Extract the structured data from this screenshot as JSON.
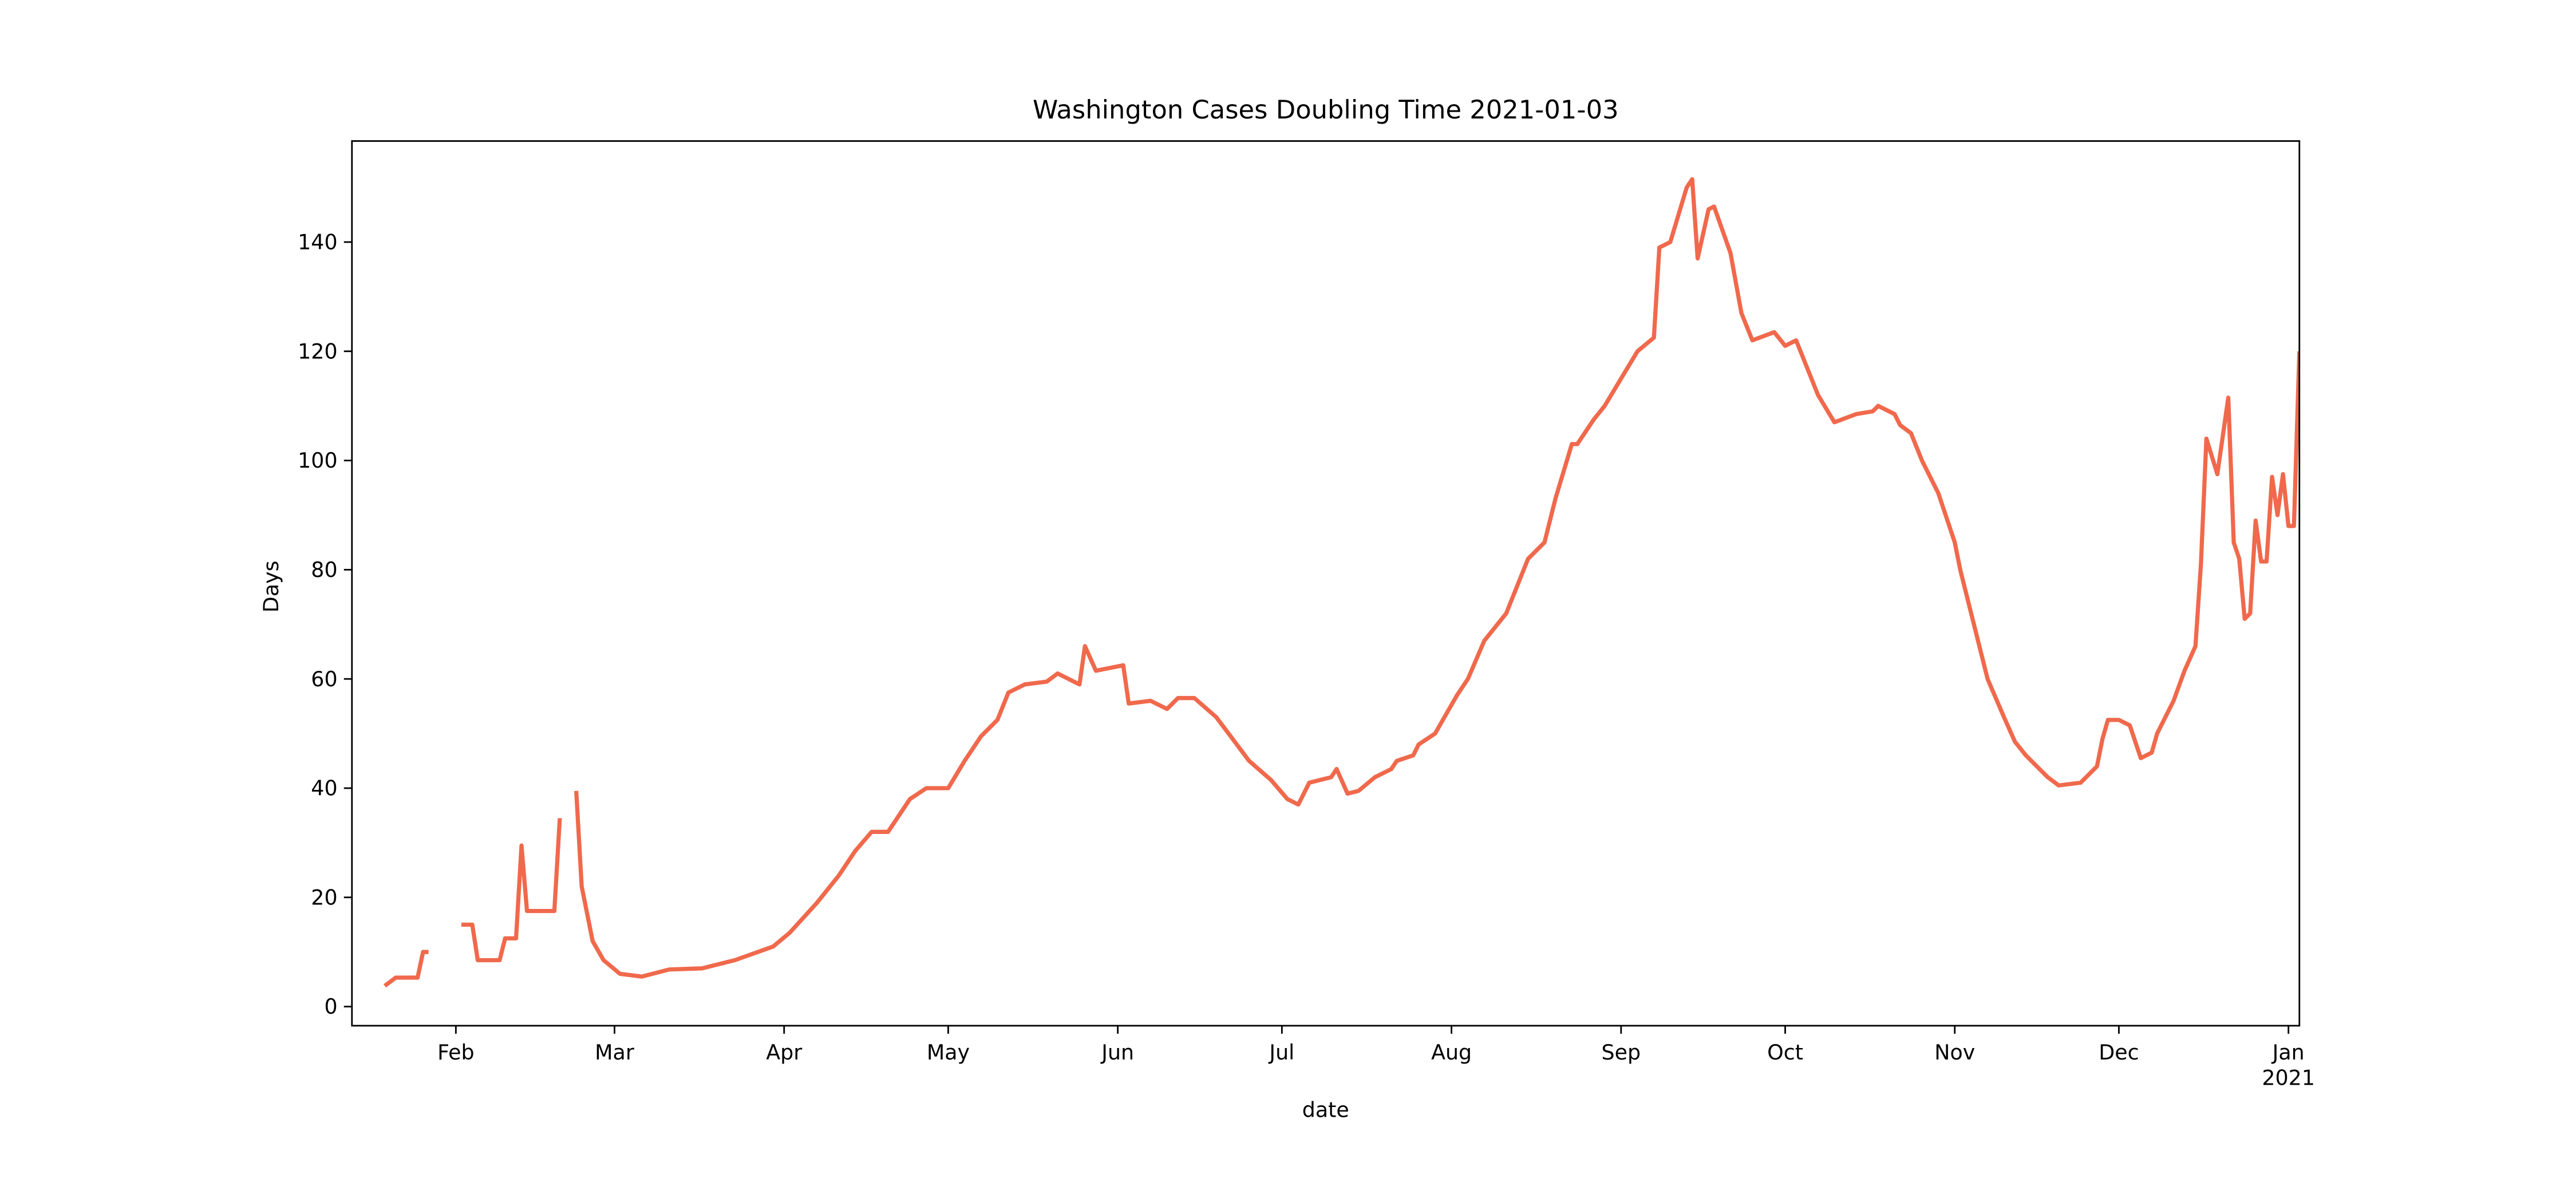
{
  "chart_data": {
    "type": "line",
    "title": "Washington Cases Doubling Time 2021-01-03",
    "x_label": "date",
    "y_label": "Days",
    "color": "#f0694c",
    "xlim": [
      "2020-01-13",
      "2021-01-03"
    ],
    "ylim": [
      -3.5,
      158.5
    ],
    "yticks": [
      0,
      20,
      40,
      60,
      80,
      100,
      120,
      140
    ],
    "xticks": [
      {
        "value": "2020-02-01",
        "label": "Feb"
      },
      {
        "value": "2020-03-01",
        "label": "Mar"
      },
      {
        "value": "2020-04-01",
        "label": "Apr"
      },
      {
        "value": "2020-05-01",
        "label": "May"
      },
      {
        "value": "2020-06-01",
        "label": "Jun"
      },
      {
        "value": "2020-07-01",
        "label": "Jul"
      },
      {
        "value": "2020-08-01",
        "label": "Aug"
      },
      {
        "value": "2020-09-01",
        "label": "Sep"
      },
      {
        "value": "2020-10-01",
        "label": "Oct"
      },
      {
        "value": "2020-11-01",
        "label": "Nov"
      },
      {
        "value": "2020-12-01",
        "label": "Dec"
      },
      {
        "value": "2021-01-01",
        "label": "Jan"
      }
    ],
    "x_offset_label": "2021",
    "x": [
      "2020-01-19",
      "2020-01-21",
      "2020-01-25",
      "2020-01-26",
      "2020-01-27",
      "2020-01-30",
      "2020-02-02",
      "2020-02-04",
      "2020-02-05",
      "2020-02-09",
      "2020-02-10",
      "2020-02-12",
      "2020-02-13",
      "2020-02-14",
      "2020-02-19",
      "2020-02-20",
      "2020-02-22",
      "2020-02-23",
      "2020-02-24",
      "2020-02-26",
      "2020-02-28",
      "2020-03-02",
      "2020-03-06",
      "2020-03-11",
      "2020-03-17",
      "2020-03-23",
      "2020-03-30",
      "2020-04-02",
      "2020-04-07",
      "2020-04-11",
      "2020-04-14",
      "2020-04-17",
      "2020-04-20",
      "2020-04-24",
      "2020-04-27",
      "2020-05-01",
      "2020-05-04",
      "2020-05-07",
      "2020-05-10",
      "2020-05-12",
      "2020-05-15",
      "2020-05-19",
      "2020-05-21",
      "2020-05-25",
      "2020-05-26",
      "2020-05-28",
      "2020-06-02",
      "2020-06-03",
      "2020-06-07",
      "2020-06-10",
      "2020-06-12",
      "2020-06-15",
      "2020-06-19",
      "2020-06-22",
      "2020-06-25",
      "2020-06-29",
      "2020-07-02",
      "2020-07-04",
      "2020-07-06",
      "2020-07-10",
      "2020-07-11",
      "2020-07-13",
      "2020-07-15",
      "2020-07-18",
      "2020-07-21",
      "2020-07-22",
      "2020-07-25",
      "2020-07-26",
      "2020-07-29",
      "2020-08-02",
      "2020-08-04",
      "2020-08-07",
      "2020-08-11",
      "2020-08-15",
      "2020-08-18",
      "2020-08-20",
      "2020-08-23",
      "2020-08-24",
      "2020-08-27",
      "2020-08-29",
      "2020-09-01",
      "2020-09-04",
      "2020-09-07",
      "2020-09-08",
      "2020-09-10",
      "2020-09-13",
      "2020-09-14",
      "2020-09-15",
      "2020-09-17",
      "2020-09-18",
      "2020-09-21",
      "2020-09-23",
      "2020-09-25",
      "2020-09-29",
      "2020-10-01",
      "2020-10-03",
      "2020-10-05",
      "2020-10-07",
      "2020-10-10",
      "2020-10-14",
      "2020-10-17",
      "2020-10-18",
      "2020-10-21",
      "2020-10-22",
      "2020-10-24",
      "2020-10-26",
      "2020-10-29",
      "2020-11-01",
      "2020-11-02",
      "2020-11-04",
      "2020-11-07",
      "2020-11-10",
      "2020-11-12",
      "2020-11-14",
      "2020-11-18",
      "2020-11-20",
      "2020-11-24",
      "2020-11-27",
      "2020-11-28",
      "2020-11-29",
      "2020-12-01",
      "2020-12-03",
      "2020-12-05",
      "2020-12-07",
      "2020-12-08",
      "2020-12-11",
      "2020-12-13",
      "2020-12-15",
      "2020-12-16",
      "2020-12-17",
      "2020-12-19",
      "2020-12-21",
      "2020-12-22",
      "2020-12-23",
      "2020-12-24",
      "2020-12-25",
      "2020-12-26",
      "2020-12-27",
      "2020-12-28",
      "2020-12-29",
      "2020-12-30",
      "2020-12-31",
      "2021-01-01",
      "2021-01-02",
      "2021-01-03"
    ],
    "values": [
      3.8,
      5.3,
      5.3,
      10,
      10,
      null,
      15,
      15,
      8.5,
      8.5,
      12.5,
      12.5,
      29.5,
      17.5,
      17.5,
      34.5,
      null,
      39.5,
      22,
      12,
      8.5,
      6,
      5.5,
      6.8,
      7,
      8.5,
      11,
      13.5,
      19,
      24,
      28.5,
      32,
      32,
      38,
      40,
      40,
      45,
      49.5,
      52.5,
      57.5,
      59,
      59.5,
      61,
      59,
      66,
      61.5,
      62.5,
      55.5,
      56,
      54.5,
      56.5,
      56.5,
      53,
      49,
      45,
      41.5,
      38,
      37,
      41,
      42,
      43.5,
      39,
      39.5,
      42,
      43.5,
      45,
      46,
      48,
      50,
      57,
      60,
      67,
      72,
      82,
      85,
      93,
      103,
      103,
      107.5,
      110,
      115,
      120,
      122.5,
      139,
      140,
      150,
      151.5,
      137,
      146,
      146.5,
      138,
      127,
      122,
      123.5,
      121,
      122,
      117,
      112,
      107,
      108.5,
      109,
      110,
      108.5,
      106.5,
      105,
      100,
      94,
      85,
      80,
      72,
      60,
      53,
      48.5,
      46,
      42,
      40.5,
      41,
      44,
      49,
      52.5,
      52.5,
      51.5,
      45.5,
      46.5,
      50,
      56,
      61.5,
      66,
      81,
      104,
      97.5,
      111.5,
      85,
      82,
      71,
      72,
      89,
      81.5,
      81.5,
      97,
      90,
      97.5,
      88,
      88,
      120
    ]
  }
}
